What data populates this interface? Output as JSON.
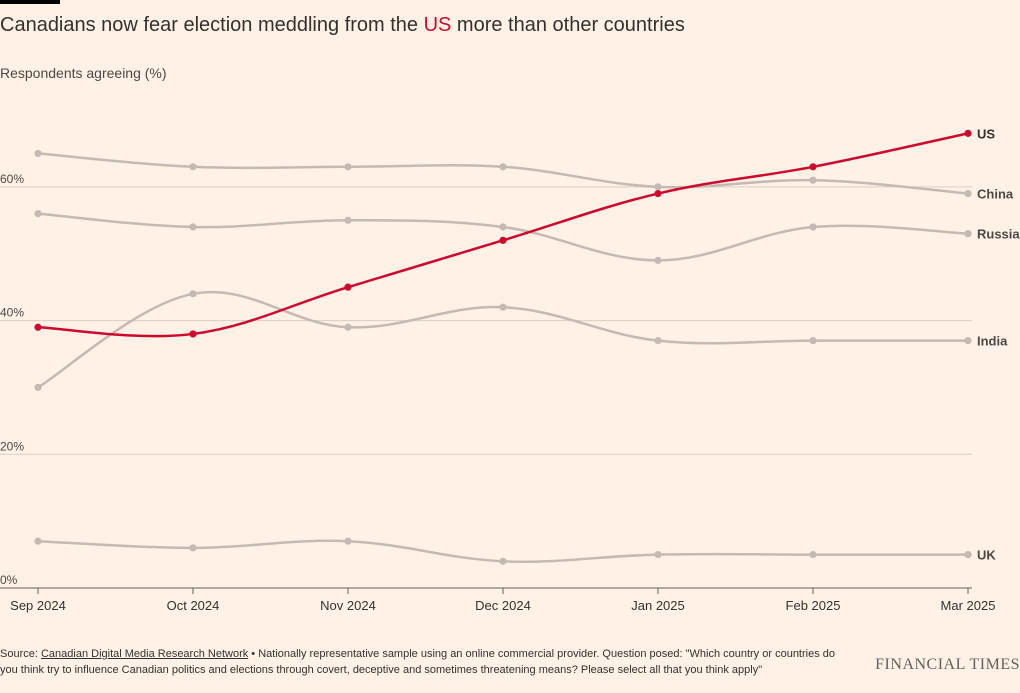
{
  "title": {
    "before": "Canadians now fear election meddling from the ",
    "highlight": "US",
    "after": " more than other countries"
  },
  "subtitle": "Respondents agreeing (%)",
  "footer": {
    "source_label": "Source: ",
    "source_link": "Canadian Digital Media Research Network",
    "note": " • Nationally representative sample using an online commercial provider. Question posed: \"Which country or countries do you think try to influence Canadian politics and elections through covert, deceptive and sometimes threatening means? Please select all that you think apply\""
  },
  "logo": "FINANCIAL TIMES",
  "colors": {
    "highlight": "#cc0a2f",
    "other": "#c4b9b3",
    "grid": "#d9cdc4",
    "text": "#33302e"
  },
  "chart_data": {
    "type": "line",
    "x": [
      "Sep 2024",
      "Oct 2024",
      "Nov 2024",
      "Dec 2024",
      "Jan 2025",
      "Feb 2025",
      "Mar 2025"
    ],
    "ylim": [
      0,
      70
    ],
    "yticks": [
      0,
      20,
      40,
      60
    ],
    "ytick_labels": [
      "0%",
      "20%",
      "40%",
      "60%"
    ],
    "xlabel": "",
    "ylabel": "Respondents agreeing (%)",
    "series": [
      {
        "name": "China",
        "values": [
          65,
          63,
          63,
          63,
          60,
          61,
          59
        ],
        "highlight": false
      },
      {
        "name": "Russia",
        "values": [
          56,
          54,
          55,
          54,
          49,
          54,
          53
        ],
        "highlight": false
      },
      {
        "name": "India",
        "values": [
          30,
          44,
          39,
          42,
          37,
          37,
          37
        ],
        "highlight": false
      },
      {
        "name": "UK",
        "values": [
          7,
          6,
          7,
          4,
          5,
          5,
          5
        ],
        "highlight": false
      },
      {
        "name": "US",
        "values": [
          39,
          38,
          45,
          52,
          59,
          63,
          68
        ],
        "highlight": true
      }
    ]
  }
}
